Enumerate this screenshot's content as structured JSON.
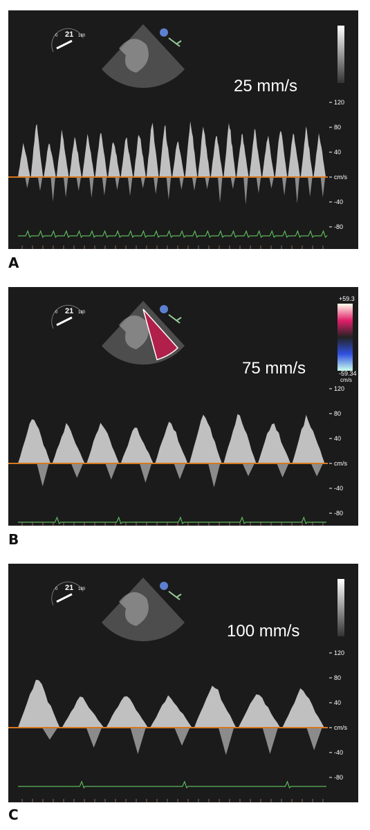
{
  "panels": [
    {
      "label": "A",
      "speed": "25 mm/s",
      "angle": {
        "start": "0",
        "value": "21",
        "end": "180"
      },
      "scale": [
        "120",
        "80",
        "40",
        "cm/s",
        "-40",
        "-80"
      ]
    },
    {
      "label": "B",
      "speed": "75 mm/s",
      "angle": {
        "start": "0",
        "value": "21",
        "end": "180"
      },
      "scale": [
        "120",
        "80",
        "40",
        "cm/s",
        "-40",
        "-80"
      ],
      "colorbar": {
        "top": "+59.3",
        "bottom": "-59.34",
        "unit": "cm/s"
      }
    },
    {
      "label": "C",
      "speed": "100 mm/s",
      "angle": {
        "start": "0",
        "value": "21",
        "end": "180"
      },
      "scale": [
        "120",
        "80",
        "40",
        "cm/s",
        "-40",
        "-80"
      ]
    }
  ]
}
